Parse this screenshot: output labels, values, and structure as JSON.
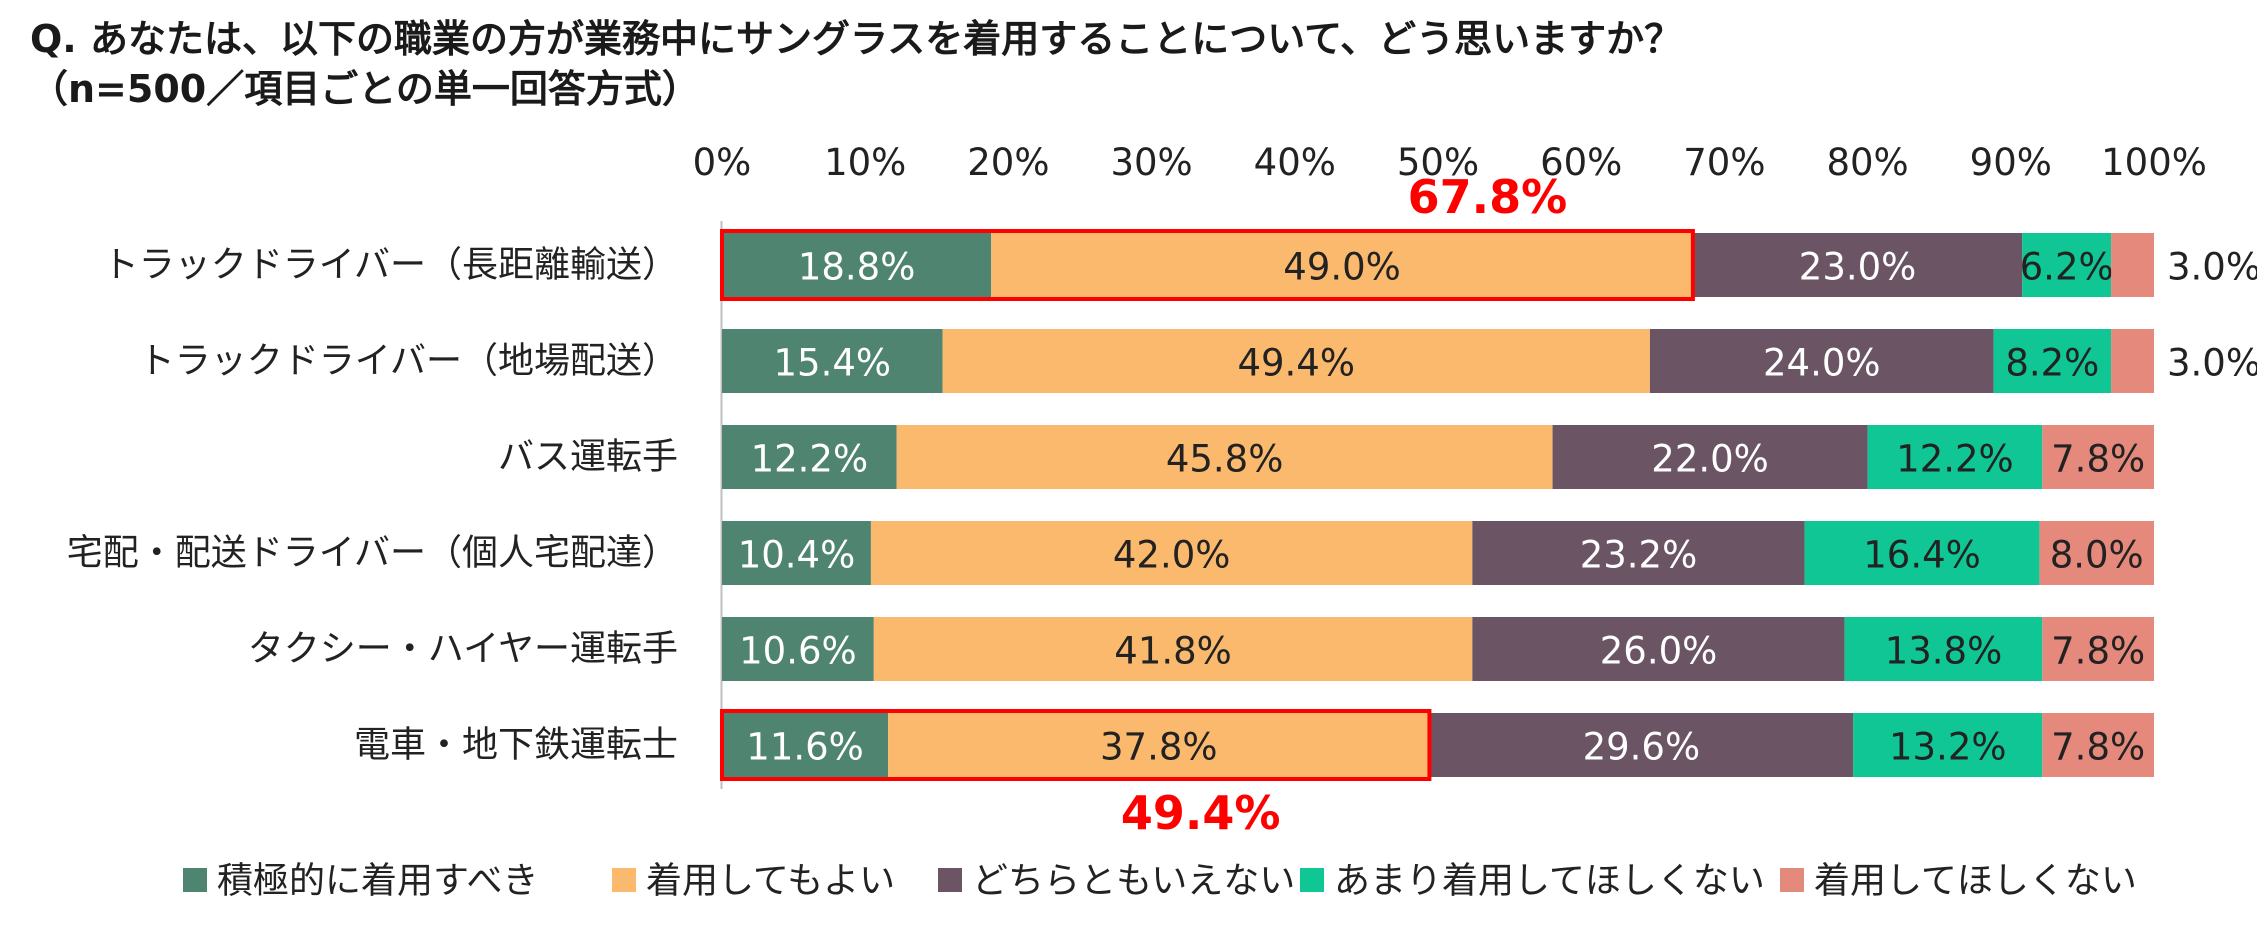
{
  "title": {
    "line1": "Q. あなたは、以下の職業の方が業務中にサングラスを着用することについて、どう思いますか？",
    "line2": "（n=500／項目ごとの単一回答方式）"
  },
  "chart_data": {
    "type": "bar",
    "orientation": "horizontal",
    "stacked": true,
    "percent": true,
    "xlim": [
      0,
      100
    ],
    "x_ticks": [
      "0%",
      "10%",
      "20%",
      "30%",
      "40%",
      "50%",
      "60%",
      "70%",
      "80%",
      "90%",
      "100%"
    ],
    "categories": [
      "トラックドライバー（長距離輸送）",
      "トラックドライバー（地場配送）",
      "バス運転手",
      "宅配・配送ドライバー（個人宅配達）",
      "タクシー・ハイヤー運転手",
      "電車・地下鉄運転士"
    ],
    "series": [
      {
        "name": "積極的に着用すべき",
        "color": "#4f8471",
        "values": [
          18.8,
          15.4,
          12.2,
          10.4,
          10.6,
          11.6
        ]
      },
      {
        "name": "着用してもよい",
        "color": "#fbb96e",
        "values": [
          49.0,
          49.4,
          45.8,
          42.0,
          41.8,
          37.8
        ]
      },
      {
        "name": "どちらともいえない",
        "color": "#6b5565",
        "values": [
          23.0,
          24.0,
          22.0,
          23.2,
          26.0,
          29.6
        ]
      },
      {
        "name": "あまり着用してほしくない",
        "color": "#10c694",
        "values": [
          6.2,
          8.2,
          12.2,
          16.4,
          13.8,
          13.2
        ]
      },
      {
        "name": "着用してほしくない",
        "color": "#e5897c",
        "values": [
          3.0,
          3.0,
          7.8,
          8.0,
          7.8,
          7.8
        ]
      }
    ],
    "data_labels": [
      [
        "18.8%",
        "49.0%",
        "23.0%",
        "6.2%",
        "3.0%"
      ],
      [
        "15.4%",
        "49.4%",
        "24.0%",
        "8.2%",
        "3.0%"
      ],
      [
        "12.2%",
        "45.8%",
        "22.0%",
        "12.2%",
        "7.8%"
      ],
      [
        "10.4%",
        "42.0%",
        "23.2%",
        "16.4%",
        "8.0%"
      ],
      [
        "10.6%",
        "41.8%",
        "26.0%",
        "13.8%",
        "7.8%"
      ],
      [
        "11.6%",
        "37.8%",
        "29.6%",
        "13.2%",
        "7.8%"
      ]
    ],
    "label_colors": [
      "#ffffff",
      "#222222",
      "#ffffff",
      "#222222",
      "#222222"
    ],
    "highlights": [
      {
        "row": 0,
        "series_count": 2,
        "label": "67.8%",
        "label_position": "above"
      },
      {
        "row": 5,
        "series_count": 2,
        "label": "49.4%",
        "label_position": "below"
      }
    ],
    "highlight_color": "#ff0000",
    "legend_position": "bottom",
    "grid": false
  }
}
